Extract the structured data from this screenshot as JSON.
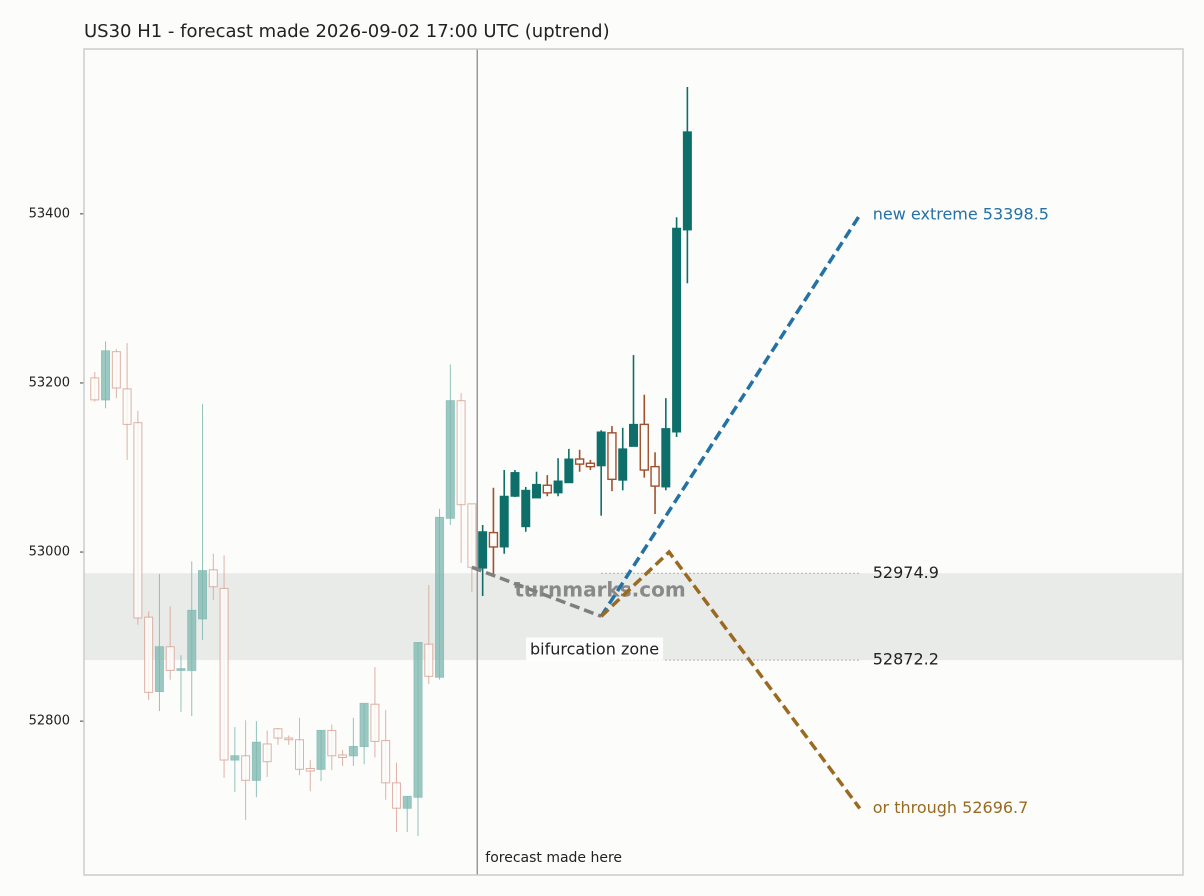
{
  "chart_data": {
    "type": "candlestick",
    "title": "US30 H1 - forecast made 2026-09-02 17:00 UTC (uptrend)",
    "xlim": [
      -1,
      101
    ],
    "ylim": [
      52618,
      53595
    ],
    "yticks": [
      52800,
      53000,
      53200,
      53400
    ],
    "series": [
      {
        "up_color": "#7fb8b1",
        "down_color": "#d9a598",
        "faded": true,
        "x": [
          0,
          1,
          2,
          3,
          4,
          5,
          6,
          7,
          8,
          9,
          10,
          11,
          12,
          13,
          14,
          15,
          16,
          17,
          18,
          19,
          20,
          21,
          22,
          23,
          24,
          25,
          26,
          27,
          28,
          29,
          30,
          31,
          32,
          33,
          34,
          35
        ],
        "open": [
          53206,
          53180,
          53237,
          53193,
          53153,
          52923,
          52835,
          52888,
          52860,
          52860,
          52921,
          52979,
          52957,
          52754,
          52759,
          52730,
          52773,
          52791,
          52780,
          52778,
          52744,
          52743,
          52789,
          52760,
          52759,
          52770,
          52820,
          52777,
          52727,
          52697,
          52710,
          52891,
          52852,
          53040,
          53179,
          53057
        ],
        "high": [
          53213,
          53249,
          53240,
          53247,
          53167,
          52930,
          52974,
          52936,
          52878,
          52989,
          53175,
          52998,
          52996,
          52793,
          52801,
          52800,
          52789,
          52792,
          52783,
          52804,
          52754,
          52789,
          52796,
          52766,
          52804,
          52821,
          52864,
          52813,
          52751,
          52711,
          52893,
          52961,
          53051,
          53222,
          53188,
          53057
        ],
        "low": [
          53178,
          53170,
          53182,
          53109,
          52914,
          52825,
          52812,
          52849,
          52811,
          52806,
          52896,
          52943,
          52733,
          52716,
          52683,
          52710,
          52734,
          52772,
          52772,
          52736,
          52717,
          52729,
          52742,
          52747,
          52747,
          52749,
          52757,
          52707,
          52669,
          52669,
          52664,
          52844,
          52849,
          53032,
          52987,
          52953
        ],
        "close": [
          53180,
          53238,
          53194,
          53151,
          52922,
          52834,
          52888,
          52860,
          52862,
          52931,
          52978,
          52959,
          52754,
          52759,
          52730,
          52775,
          52752,
          52780,
          52778,
          52743,
          52741,
          52789,
          52759,
          52757,
          52770,
          52821,
          52776,
          52727,
          52697,
          52711,
          52893,
          52853,
          53041,
          53179,
          53056,
          52982
        ]
      },
      {
        "up_color": "#0e6e6a",
        "down_color": "#a0502e",
        "faded": false,
        "x": [
          36,
          37,
          38,
          39,
          40,
          41,
          42,
          43,
          44,
          45,
          46,
          47,
          48,
          49,
          50,
          51,
          52,
          53,
          54,
          55
        ],
        "open": [
          52981,
          53023,
          53006,
          53066,
          53030,
          53064,
          53079,
          53070,
          53082,
          53110,
          53105,
          53102,
          53141,
          53085,
          53125,
          53151,
          53101,
          53077,
          53142,
          53381
        ],
        "high": [
          53032,
          53076,
          53097,
          53097,
          53077,
          53095,
          53091,
          53111,
          53122,
          53121,
          53109,
          53144,
          53149,
          53147,
          53233,
          53186,
          53118,
          53182,
          53396,
          53550
        ],
        "low": [
          52948,
          52973,
          52998,
          53065,
          53024,
          53065,
          53066,
          53066,
          53082,
          53095,
          53097,
          53043,
          53072,
          53073,
          53125,
          53088,
          53045,
          53073,
          53136,
          53318
        ],
        "close": [
          53024,
          53006,
          53066,
          53094,
          53073,
          53080,
          53070,
          53084,
          53110,
          53104,
          53101,
          53142,
          53086,
          53122,
          53151,
          53097,
          53078,
          53146,
          53383,
          53497
        ]
      }
    ],
    "paths": [
      {
        "color": "#7f7f7f",
        "x": [
          35,
          47
        ],
        "values": [
          52982,
          52924
        ]
      },
      {
        "color": "#2471a3",
        "x": [
          47,
          71
        ],
        "values": [
          52924,
          53398.5
        ]
      },
      {
        "color": "#9a6a22",
        "x": [
          47,
          53.3,
          71
        ],
        "values": [
          52924,
          53000,
          52696.7
        ]
      }
    ],
    "zone": {
      "low": 52872.2,
      "high": 52974.9,
      "label": "bifurcation zone",
      "color": "#e9ebe8",
      "line_x": [
        47,
        71
      ]
    },
    "vline": {
      "x": 35.5,
      "label": "forecast made here"
    },
    "annotations": [
      {
        "text": "new extreme 53398.5",
        "x": 71,
        "y": 53398.5,
        "color": "#2471a3"
      },
      {
        "text": "or through 52696.7",
        "x": 71,
        "y": 52696.7,
        "color": "#9a6a22"
      }
    ],
    "watermark": "turnmarks.com"
  }
}
